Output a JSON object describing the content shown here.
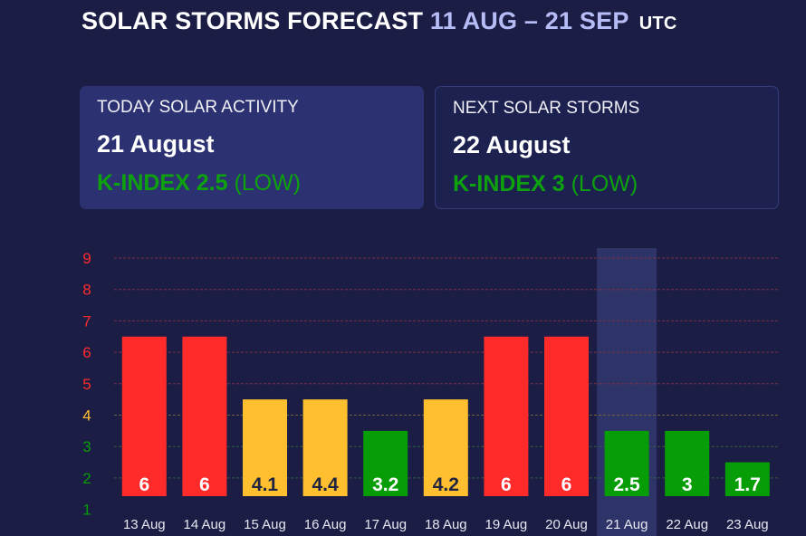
{
  "header": {
    "title_main": "SOLAR STORMS FORECAST",
    "title_range": "11 AUG – 21 SEP",
    "title_tz": "UTC"
  },
  "cards": {
    "today": {
      "label": "TODAY SOLAR ACTIVITY",
      "date": "21 August",
      "k_label": "K-INDEX 2.5",
      "level": "(LOW)"
    },
    "next": {
      "label": "NEXT SOLAR STORMS",
      "date": "22 August",
      "k_label": "K-INDEX 3",
      "level": "(LOW)"
    }
  },
  "colors": {
    "background": "#1b1d45",
    "high": "#ff2b2b",
    "moderate": "#ffbf2f",
    "low": "#079d07",
    "highlight": "#2f3468"
  },
  "chart_data": {
    "type": "bar",
    "categories": [
      "13 Aug",
      "14 Aug",
      "15 Aug",
      "16 Aug",
      "17 Aug",
      "18 Aug",
      "19 Aug",
      "20 Aug",
      "21 Aug",
      "22 Aug",
      "23 Aug"
    ],
    "values": [
      6,
      6,
      4.1,
      4.4,
      3.2,
      4.2,
      6,
      6,
      2.5,
      3,
      1.7
    ],
    "bar_levels": [
      6.5,
      6.5,
      4.5,
      4.5,
      3.5,
      4.5,
      6.5,
      6.5,
      3.5,
      3.5,
      2.5
    ],
    "y_ticks": [
      1,
      2,
      3,
      4,
      5,
      6,
      7,
      8,
      9
    ],
    "ylim": [
      1,
      9
    ],
    "highlight_category": "21 Aug",
    "grid": true,
    "title": "",
    "xlabel": "",
    "ylabel": ""
  }
}
